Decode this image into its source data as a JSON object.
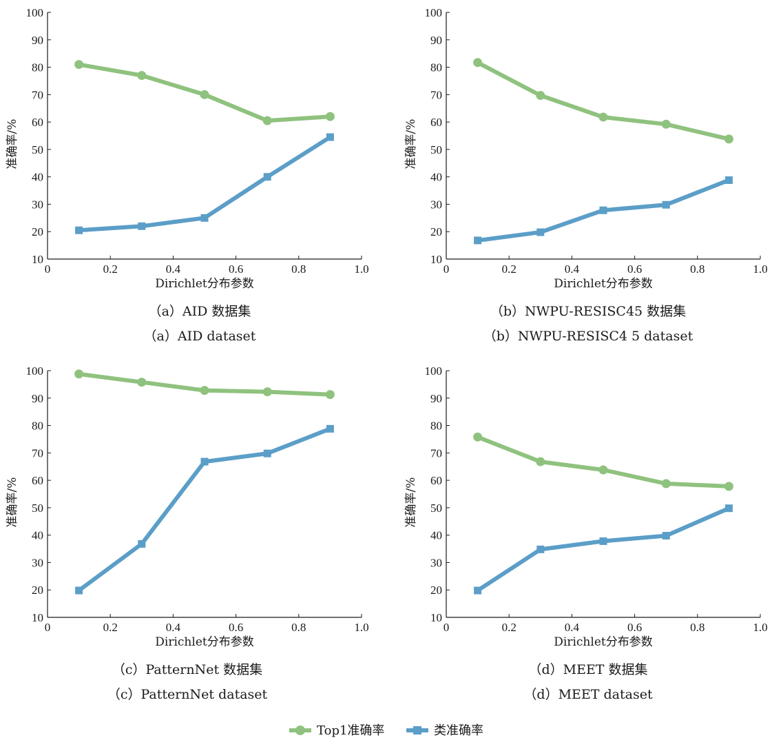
{
  "chart_data": [
    {
      "type": "line",
      "caption_cn": "（a）AID 数据集",
      "caption_en": "（a）AID dataset",
      "xlabel": "Dirichlet分布参数",
      "ylabel": "准确率/%",
      "xlim": [
        0,
        1.0
      ],
      "ylim": [
        10,
        100
      ],
      "xticks": [
        "0",
        "0.2",
        "0.4",
        "0.6",
        "0.8",
        "1.0"
      ],
      "yticks": [
        "10",
        "20",
        "30",
        "40",
        "50",
        "60",
        "70",
        "80",
        "90",
        "100"
      ],
      "x": [
        0.1,
        0.3,
        0.5,
        0.7,
        0.9
      ],
      "series": [
        {
          "name": "Top1准确率",
          "values": [
            81,
            77,
            70,
            60.5,
            62
          ]
        },
        {
          "name": "类准确率",
          "values": [
            20.5,
            22,
            25,
            40,
            54.5
          ]
        }
      ]
    },
    {
      "type": "line",
      "caption_cn": "（b）NWPU-RESISC45 数据集",
      "caption_en": "（b）NWPU-RESISC4 5 dataset",
      "xlabel": "Dirichlet分布参数",
      "ylabel": "准确率/%",
      "xlim": [
        0,
        1.0
      ],
      "ylim": [
        10,
        100
      ],
      "xticks": [
        "0",
        "0.2",
        "0.4",
        "0.6",
        "0.8",
        "1.0"
      ],
      "yticks": [
        "10",
        "20",
        "30",
        "40",
        "50",
        "60",
        "70",
        "80",
        "90",
        "100"
      ],
      "x": [
        0.1,
        0.3,
        0.5,
        0.7,
        0.9
      ],
      "series": [
        {
          "name": "Top1准确率",
          "values": [
            81.7,
            69.7,
            61.8,
            59.2,
            53.8
          ]
        },
        {
          "name": "类准确率",
          "values": [
            16.8,
            19.8,
            27.8,
            29.8,
            38.8
          ]
        }
      ]
    },
    {
      "type": "line",
      "caption_cn": "（c）PatternNet 数据集",
      "caption_en": "（c）PatternNet dataset",
      "xlabel": "Dirichlet分布参数",
      "ylabel": "准确率/%",
      "xlim": [
        0,
        1.0
      ],
      "ylim": [
        10,
        100
      ],
      "xticks": [
        "0",
        "0.2",
        "0.4",
        "0.6",
        "0.8",
        "1.0"
      ],
      "yticks": [
        "10",
        "20",
        "30",
        "40",
        "50",
        "60",
        "70",
        "80",
        "90",
        "100"
      ],
      "x": [
        0.1,
        0.3,
        0.5,
        0.7,
        0.9
      ],
      "series": [
        {
          "name": "Top1准确率",
          "values": [
            98.8,
            95.8,
            92.8,
            92.3,
            91.3
          ]
        },
        {
          "name": "类准确率",
          "values": [
            19.8,
            36.8,
            66.8,
            69.8,
            78.8
          ]
        }
      ]
    },
    {
      "type": "line",
      "caption_cn": "（d）MEET 数据集",
      "caption_en": "（d）MEET dataset",
      "xlabel": "Dirichlet分布参数",
      "ylabel": "准确率/%",
      "xlim": [
        0,
        1.0
      ],
      "ylim": [
        10,
        100
      ],
      "xticks": [
        "0",
        "0.2",
        "0.4",
        "0.6",
        "0.8",
        "1.0"
      ],
      "yticks": [
        "10",
        "20",
        "30",
        "40",
        "50",
        "60",
        "70",
        "80",
        "90",
        "100"
      ],
      "x": [
        0.1,
        0.3,
        0.5,
        0.7,
        0.9
      ],
      "series": [
        {
          "name": "Top1准确率",
          "values": [
            75.8,
            66.8,
            63.8,
            58.8,
            57.8
          ]
        },
        {
          "name": "类准确率",
          "values": [
            19.8,
            34.8,
            37.8,
            39.8,
            49.8
          ]
        }
      ]
    }
  ],
  "legend": {
    "placement": "bottom-center",
    "items": [
      {
        "label": "Top1准确率",
        "color": "#8fc27e",
        "marker": "circle"
      },
      {
        "label": "类准确率",
        "color": "#5b9ec8",
        "marker": "square"
      }
    ]
  },
  "colors": {
    "top1": "#8fc27e",
    "class": "#5b9ec8",
    "axis": "#1a1a1a"
  }
}
